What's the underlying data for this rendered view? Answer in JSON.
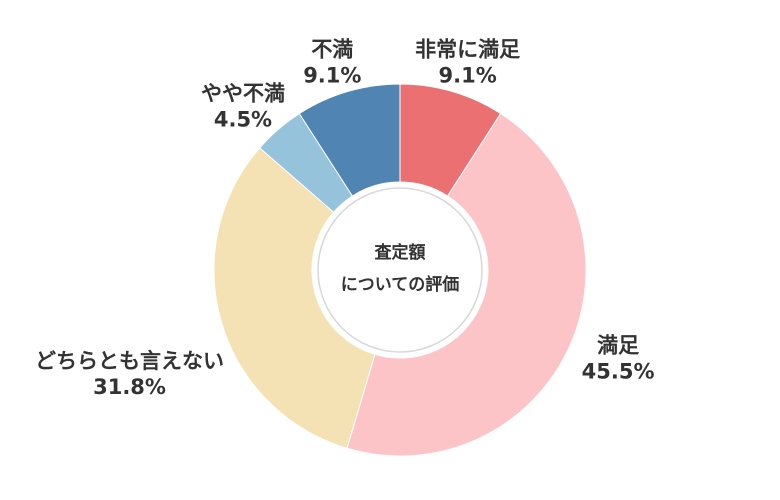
{
  "chart_data": {
    "type": "donut",
    "center_text": [
      "査定額",
      "についての評価"
    ],
    "categories": [
      "非常に満足",
      "満足",
      "どちらとも言えない",
      "やや不満",
      "不満"
    ],
    "values": [
      9.1,
      45.5,
      31.8,
      4.5,
      9.1
    ],
    "value_labels": [
      "9.1%",
      "45.5%",
      "31.8%",
      "4.5%",
      "9.1%"
    ],
    "colors": [
      "#ea7072",
      "#fdc4c7",
      "#f4e2b4",
      "#95c3dc",
      "#4f84b3"
    ]
  }
}
